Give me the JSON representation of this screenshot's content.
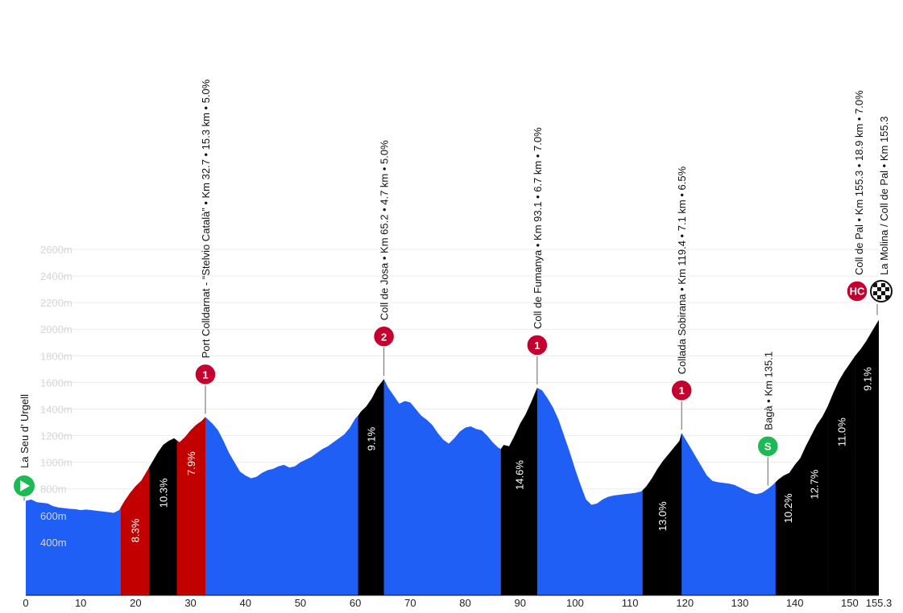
{
  "chart_data": {
    "type": "area",
    "title": "",
    "xlabel": "",
    "ylabel": "",
    "xlim": [
      0,
      155.3
    ],
    "ylim": [
      0,
      2600
    ],
    "x_ticks": [
      0,
      10,
      20,
      30,
      40,
      50,
      60,
      70,
      80,
      90,
      100,
      110,
      120,
      130,
      140,
      150,
      155.3
    ],
    "y_ticks": [
      400,
      600,
      800,
      1000,
      1200,
      1400,
      1600,
      1800,
      2000,
      2200,
      2400,
      2600
    ],
    "y_tick_unit": "m",
    "colors": {
      "base": "#1f5ff5",
      "climb": "#000000",
      "climb_highlight": "#c20000",
      "badge": "#c4002f",
      "sprint": "#1db954"
    },
    "profile": [
      [
        0,
        710
      ],
      [
        1,
        720
      ],
      [
        2,
        700
      ],
      [
        3,
        695
      ],
      [
        4,
        690
      ],
      [
        5,
        670
      ],
      [
        6,
        660
      ],
      [
        7,
        655
      ],
      [
        8,
        650
      ],
      [
        9,
        648
      ],
      [
        10,
        640
      ],
      [
        11,
        645
      ],
      [
        12,
        640
      ],
      [
        13,
        635
      ],
      [
        14,
        630
      ],
      [
        15,
        625
      ],
      [
        16,
        620
      ],
      [
        17,
        640
      ],
      [
        18,
        710
      ],
      [
        19,
        770
      ],
      [
        20,
        820
      ],
      [
        21,
        860
      ],
      [
        22,
        930
      ],
      [
        23,
        1000
      ],
      [
        24,
        1070
      ],
      [
        25,
        1130
      ],
      [
        26,
        1160
      ],
      [
        27,
        1180
      ],
      [
        28,
        1150
      ],
      [
        29,
        1190
      ],
      [
        30,
        1240
      ],
      [
        31,
        1280
      ],
      [
        32,
        1310
      ],
      [
        32.7,
        1340
      ],
      [
        34,
        1290
      ],
      [
        35,
        1240
      ],
      [
        36,
        1160
      ],
      [
        37,
        1070
      ],
      [
        38,
        1000
      ],
      [
        39,
        930
      ],
      [
        40,
        900
      ],
      [
        41,
        880
      ],
      [
        42,
        890
      ],
      [
        43,
        920
      ],
      [
        44,
        940
      ],
      [
        45,
        950
      ],
      [
        46,
        970
      ],
      [
        47,
        980
      ],
      [
        48,
        960
      ],
      [
        49,
        970
      ],
      [
        50,
        1000
      ],
      [
        51,
        1020
      ],
      [
        52,
        1040
      ],
      [
        53,
        1070
      ],
      [
        54,
        1100
      ],
      [
        55,
        1120
      ],
      [
        56,
        1150
      ],
      [
        57,
        1180
      ],
      [
        58,
        1210
      ],
      [
        59,
        1260
      ],
      [
        60,
        1330
      ],
      [
        60.5,
        1350
      ],
      [
        61,
        1380
      ],
      [
        62,
        1420
      ],
      [
        63,
        1480
      ],
      [
        64,
        1560
      ],
      [
        65.2,
        1625
      ],
      [
        66,
        1560
      ],
      [
        67,
        1500
      ],
      [
        68,
        1440
      ],
      [
        69,
        1460
      ],
      [
        70,
        1450
      ],
      [
        71,
        1400
      ],
      [
        72,
        1350
      ],
      [
        73,
        1320
      ],
      [
        74,
        1280
      ],
      [
        75,
        1220
      ],
      [
        76,
        1170
      ],
      [
        77,
        1140
      ],
      [
        78,
        1180
      ],
      [
        79,
        1230
      ],
      [
        80,
        1260
      ],
      [
        81,
        1270
      ],
      [
        82,
        1250
      ],
      [
        83,
        1240
      ],
      [
        84,
        1200
      ],
      [
        85,
        1150
      ],
      [
        86,
        1110
      ],
      [
        86.5,
        1100
      ],
      [
        87,
        1130
      ],
      [
        88,
        1120
      ],
      [
        89,
        1200
      ],
      [
        90,
        1290
      ],
      [
        91,
        1360
      ],
      [
        92,
        1450
      ],
      [
        93.1,
        1560
      ],
      [
        94,
        1540
      ],
      [
        95,
        1480
      ],
      [
        96,
        1410
      ],
      [
        97,
        1320
      ],
      [
        98,
        1200
      ],
      [
        99,
        1080
      ],
      [
        100,
        950
      ],
      [
        101,
        830
      ],
      [
        102,
        720
      ],
      [
        103,
        680
      ],
      [
        104,
        690
      ],
      [
        105,
        720
      ],
      [
        106,
        740
      ],
      [
        107,
        750
      ],
      [
        108,
        755
      ],
      [
        109,
        760
      ],
      [
        110,
        765
      ],
      [
        111,
        770
      ],
      [
        112,
        780
      ],
      [
        112.3,
        790
      ],
      [
        113,
        820
      ],
      [
        114,
        880
      ],
      [
        115,
        950
      ],
      [
        116,
        1010
      ],
      [
        117,
        1060
      ],
      [
        118,
        1110
      ],
      [
        119,
        1160
      ],
      [
        119.4,
        1220
      ],
      [
        120,
        1180
      ],
      [
        121,
        1110
      ],
      [
        122,
        1040
      ],
      [
        123,
        970
      ],
      [
        124,
        900
      ],
      [
        125,
        860
      ],
      [
        126,
        850
      ],
      [
        127,
        845
      ],
      [
        128,
        840
      ],
      [
        129,
        830
      ],
      [
        130,
        810
      ],
      [
        131,
        790
      ],
      [
        132,
        770
      ],
      [
        133,
        760
      ],
      [
        134,
        770
      ],
      [
        135.1,
        800
      ],
      [
        136,
        830
      ],
      [
        137,
        870
      ],
      [
        138,
        900
      ],
      [
        139,
        920
      ],
      [
        140,
        980
      ],
      [
        141,
        1030
      ],
      [
        142,
        1120
      ],
      [
        143,
        1200
      ],
      [
        144,
        1280
      ],
      [
        145,
        1340
      ],
      [
        146,
        1420
      ],
      [
        147,
        1520
      ],
      [
        148,
        1610
      ],
      [
        149,
        1680
      ],
      [
        150,
        1740
      ],
      [
        151,
        1800
      ],
      [
        152,
        1850
      ],
      [
        153,
        1910
      ],
      [
        154,
        1980
      ],
      [
        155.3,
        2070
      ]
    ],
    "segments": [
      {
        "from": 17.3,
        "to": 22.5,
        "gradient": "8.3%",
        "color": "#c20000"
      },
      {
        "from": 22.5,
        "to": 27.5,
        "gradient": "10.3%",
        "color": "#000000"
      },
      {
        "from": 27.5,
        "to": 32.7,
        "gradient": "7.9%",
        "color": "#c20000"
      },
      {
        "from": 60.5,
        "to": 65.2,
        "gradient": "9.1%",
        "color": "#000000"
      },
      {
        "from": 86.5,
        "to": 93.1,
        "gradient": "14.6%",
        "color": "#000000"
      },
      {
        "from": 112.3,
        "to": 119.4,
        "gradient": "13.0%",
        "color": "#000000"
      },
      {
        "from": 136.5,
        "to": 141,
        "gradient": "10.2%",
        "color": "#000000"
      },
      {
        "from": 141,
        "to": 146,
        "gradient": "12.7%",
        "color": "#000000"
      },
      {
        "from": 146,
        "to": 151,
        "gradient": "11.0%",
        "color": "#000000"
      },
      {
        "from": 151,
        "to": 155.3,
        "gradient": "9.1%",
        "color": "#000000"
      }
    ],
    "annotations": [
      {
        "km": 0,
        "elev": 710,
        "badge": "start",
        "badge_text": "",
        "lines": [
          "La Seu d’ Urgell"
        ]
      },
      {
        "km": 32.7,
        "elev": 1340,
        "badge": "cat",
        "badge_text": "1",
        "lines": [
          "Port Colldarnat -   “Stelvio Català”   •  Km 32.7  •  15.3 km  •  5.0%"
        ]
      },
      {
        "km": 65.2,
        "elev": 1625,
        "badge": "cat",
        "badge_text": "2",
        "lines": [
          "Coll de Josa  •  Km 65.2  •  4.7 km  •  5.0%"
        ]
      },
      {
        "km": 93.1,
        "elev": 1560,
        "badge": "cat",
        "badge_text": "1",
        "lines": [
          "Coll de Fumanya  •  Km 93.1  •  6.7 km  •  7.0%"
        ]
      },
      {
        "km": 119.4,
        "elev": 1220,
        "badge": "cat",
        "badge_text": "1",
        "lines": [
          "Collada Sobirana  •  Km 119.4  •  7.1 km  •  6.5%"
        ]
      },
      {
        "km": 135.1,
        "elev": 800,
        "badge": "sprint",
        "badge_text": "S",
        "lines": [
          "Bagà  •  Km 135.1"
        ]
      },
      {
        "km": 155.3,
        "elev": 2070,
        "badge": "hc_finish",
        "badge_text": "HC",
        "lines": [
          "Coll de Pal  •  Km 155.3  •  18.9 km  •  7.0%",
          "La Molina / Coll de Pal  •  Km 155.3"
        ]
      }
    ]
  }
}
